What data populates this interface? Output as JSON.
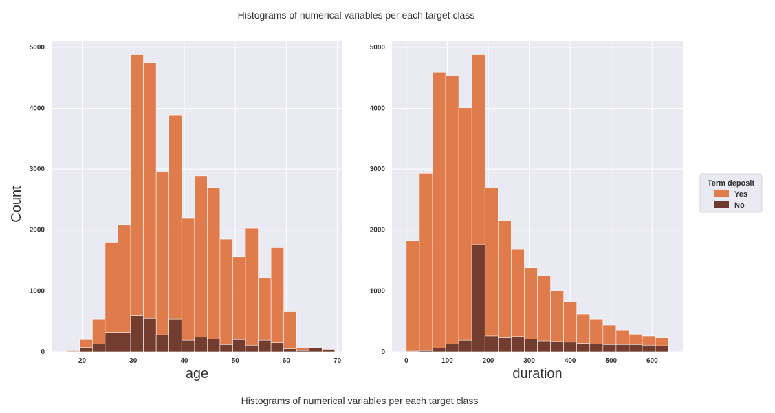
{
  "suptitle": "Histograms of numerical variables per each target class",
  "caption": "Histograms of numerical variables per each target class",
  "ylabel": "Count",
  "colors": {
    "yes": "#e07b4c",
    "no": "#6b3a2c",
    "plot_bg": "#eaeaf2",
    "grid": "#ffffff"
  },
  "legend": {
    "title": "Term deposit",
    "placement": "right",
    "entries": [
      "Yes",
      "No"
    ]
  },
  "chart_data": [
    {
      "type": "bar",
      "xlabel": "age",
      "ylabel": "Count",
      "xlim": [
        14,
        71
      ],
      "ylim": [
        0,
        5100
      ],
      "xticks": [
        20,
        30,
        40,
        50,
        60,
        70
      ],
      "yticks": [
        0,
        1000,
        2000,
        3000,
        4000,
        5000
      ],
      "bin_width": 2.5,
      "bin_starts": [
        17,
        19.5,
        22,
        24.5,
        27,
        29.5,
        32,
        34.5,
        37,
        39.5,
        42,
        44.5,
        47,
        49.5,
        52,
        54.5,
        57,
        59.5,
        62,
        64.5,
        67
      ],
      "series": [
        {
          "name": "Yes",
          "values": [
            20,
            200,
            540,
            1800,
            2090,
            4880,
            4750,
            2950,
            3880,
            2200,
            2890,
            2700,
            1850,
            1560,
            2030,
            1210,
            1710,
            660,
            60,
            60,
            30
          ]
        },
        {
          "name": "No",
          "values": [
            10,
            70,
            130,
            320,
            320,
            590,
            550,
            280,
            540,
            190,
            240,
            210,
            120,
            200,
            110,
            190,
            150,
            50,
            20,
            60,
            40
          ]
        }
      ]
    },
    {
      "type": "bar",
      "xlabel": "duration",
      "ylabel": "",
      "xlim": [
        -35,
        675
      ],
      "ylim": [
        0,
        5100
      ],
      "xticks": [
        0,
        100,
        200,
        300,
        400,
        500,
        600
      ],
      "yticks": [
        0,
        1000,
        2000,
        3000,
        4000,
        5000
      ],
      "bin_width": 32,
      "bin_starts": [
        0,
        32,
        64,
        96,
        128,
        160,
        192,
        224,
        256,
        288,
        320,
        352,
        384,
        416,
        448,
        480,
        512,
        544,
        576,
        608
      ],
      "series": [
        {
          "name": "Yes",
          "values": [
            1830,
            2930,
            4590,
            4530,
            4010,
            4880,
            2690,
            2160,
            1680,
            1380,
            1250,
            1000,
            820,
            620,
            540,
            440,
            360,
            290,
            260,
            230
          ]
        },
        {
          "name": "No",
          "values": [
            10,
            20,
            60,
            130,
            190,
            1760,
            260,
            230,
            250,
            210,
            180,
            170,
            160,
            140,
            130,
            120,
            120,
            120,
            110,
            100
          ]
        }
      ]
    }
  ]
}
